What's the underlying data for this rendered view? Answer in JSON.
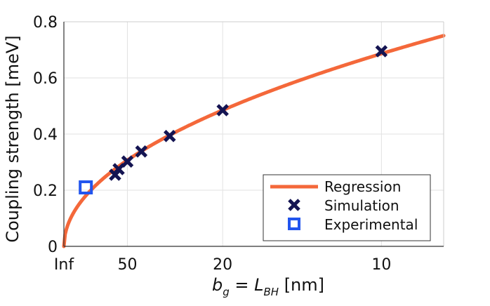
{
  "chart_data": {
    "type": "scatter",
    "title": "",
    "xlabel": {
      "main_1": "b",
      "sub_1": "g",
      "mid": " = ",
      "main_2": "L",
      "sub_2": "BH",
      "unit": " [nm]"
    },
    "ylabel": "Coupling strength [meV]",
    "x_scale": "inverse",
    "x_ticks": [
      {
        "value": "Inf",
        "label": "Inf"
      },
      {
        "value": 50,
        "label": "50"
      },
      {
        "value": 20,
        "label": "20"
      },
      {
        "value": 10,
        "label": "10"
      }
    ],
    "y_ticks": [
      0,
      0.2,
      0.4,
      0.6,
      0.8
    ],
    "y_tick_labels": [
      "0",
      "0.2",
      "0.4",
      "0.6",
      "0.8"
    ],
    "ylim": [
      0,
      0.8
    ],
    "inverse_x_range": [
      0,
      0.1196
    ],
    "grid": true,
    "legend_position": "bottom-right",
    "series": [
      {
        "name": "Regression",
        "kind": "line",
        "color": "#f4683a",
        "model": "y = 2.17 * sqrt(1/x)",
        "coefficient": 2.17
      },
      {
        "name": "Simulation",
        "kind": "marker",
        "marker": "x",
        "color": "#141452",
        "points": [
          {
            "x": 62,
            "y": 0.255
          },
          {
            "x": 58,
            "y": 0.275
          },
          {
            "x": 50,
            "y": 0.302
          },
          {
            "x": 41,
            "y": 0.338
          },
          {
            "x": 30,
            "y": 0.393
          },
          {
            "x": 20,
            "y": 0.485
          },
          {
            "x": 10,
            "y": 0.695
          }
        ]
      },
      {
        "name": "Experimental",
        "kind": "marker",
        "marker": "square",
        "color": "#2255ee",
        "points": [
          {
            "x": 145,
            "y": 0.21
          }
        ]
      }
    ]
  }
}
